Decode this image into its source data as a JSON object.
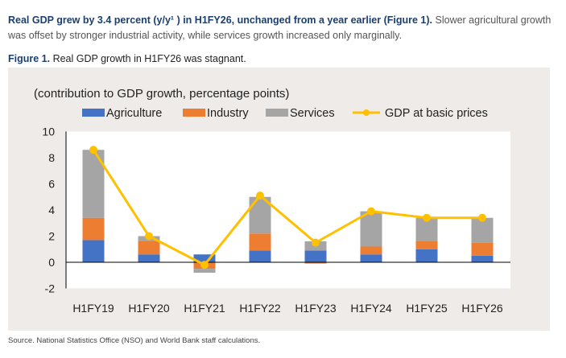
{
  "text": {
    "lead_bold": "Real GDP grew by 3.4 percent (y/y¹ ) in H1FY26, unchanged from a year earlier (Figure 1).",
    "lead_rest": " Slower agricultural growth was offset by stronger industrial activity, while services growth increased only marginally.",
    "figure_label": "Figure 1.",
    "figure_title": " Real GDP growth in H1FY26 was stagnant.",
    "source": "Source. National Statistics Office (NSO) and World Bank staff calculations."
  },
  "chart_data": {
    "type": "bar",
    "stacked": true,
    "title": "(contribution to GDP growth, percentage points)",
    "categories": [
      "H1FY19",
      "H1FY20",
      "H1FY21",
      "H1FY22",
      "H1FY23",
      "H1FY24",
      "H1FY25",
      "H1FY26"
    ],
    "series": [
      {
        "name": "Agriculture",
        "type": "bar",
        "color": "#4472c4",
        "values": [
          1.7,
          0.6,
          0.6,
          0.9,
          0.9,
          0.6,
          1.0,
          0.5
        ]
      },
      {
        "name": "Industry",
        "type": "bar",
        "color": "#ed7d31",
        "values": [
          1.7,
          1.0,
          -0.5,
          1.3,
          -0.1,
          0.6,
          0.6,
          1.0
        ]
      },
      {
        "name": "Services",
        "type": "bar",
        "color": "#a5a5a5",
        "values": [
          5.2,
          0.4,
          -0.3,
          2.8,
          0.7,
          2.7,
          1.8,
          1.9
        ]
      },
      {
        "name": "GDP at basic prices",
        "type": "line",
        "color": "#ffc000",
        "values": [
          8.6,
          2.0,
          -0.2,
          5.1,
          1.5,
          3.9,
          3.4,
          3.4
        ]
      }
    ],
    "ylim": [
      -2,
      10
    ],
    "yticks": [
      -2,
      0,
      2,
      4,
      6,
      8,
      10
    ],
    "legend": "top",
    "grid": false
  }
}
